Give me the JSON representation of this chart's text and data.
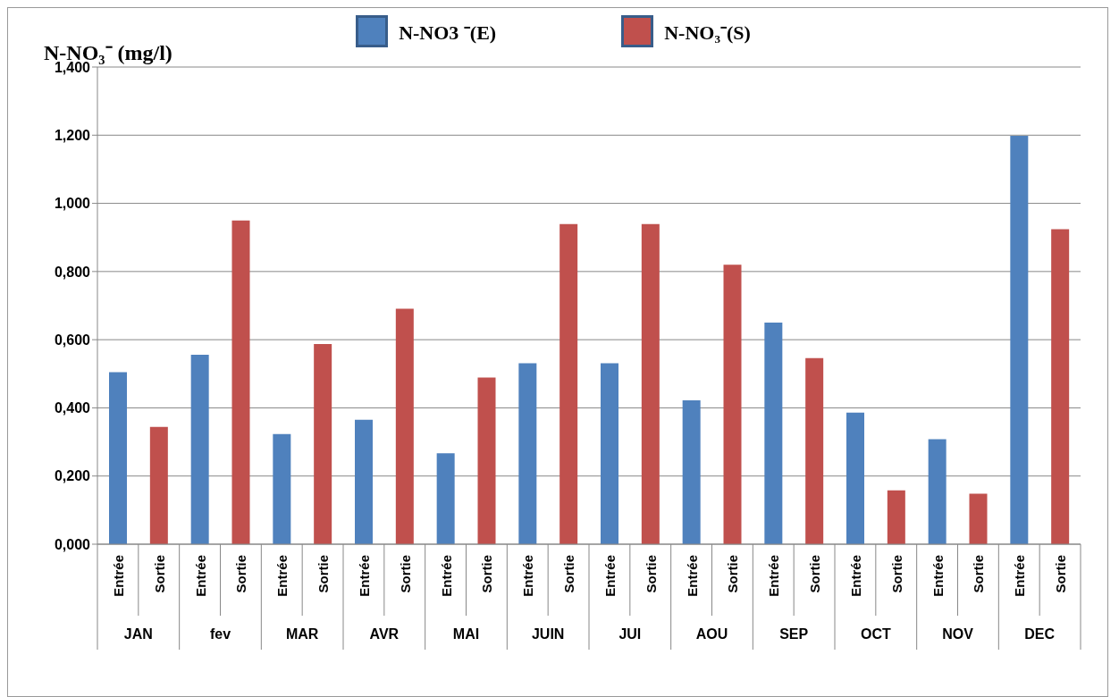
{
  "chart_data": {
    "type": "bar",
    "ylabel": "N-NO₃⁻ (mg/l)",
    "categories": [
      "JAN",
      "fev",
      "MAR",
      "AVR",
      "MAI",
      "JUIN",
      "JUI",
      "AOU",
      "SEP",
      "OCT",
      "NOV",
      "DEC"
    ],
    "series": [
      {
        "name": "N-NO3 ⁻(E)",
        "color": "#4f81bd",
        "values": [
          0.505,
          0.556,
          0.323,
          0.365,
          0.267,
          0.531,
          0.531,
          0.422,
          0.65,
          0.386,
          0.308,
          1.198
        ]
      },
      {
        "name": "N-NO₃⁻(S)",
        "color": "#c0504d",
        "values": [
          0.344,
          0.95,
          0.587,
          0.691,
          0.489,
          0.939,
          0.939,
          0.82,
          0.546,
          0.158,
          0.148,
          0.924
        ]
      }
    ],
    "annotations": [
      "Entrée",
      "Sortie",
      "Entrée",
      "Sortie",
      "Entrée",
      "Sortie",
      "Entrée",
      "Sortie",
      "Entrée",
      "Sortie",
      "Entrée",
      "Sortie",
      "Entrée",
      "Sortie",
      "Entrée",
      "Sortie",
      "Entrée",
      "Sortie",
      "Entrée",
      "Sortie",
      "Entrée",
      "Sortie",
      "Entrée",
      "Sortie"
    ],
    "ylim": [
      0,
      1.4
    ],
    "yticks": [
      {
        "value": 0,
        "label": "0,000"
      },
      {
        "value": 0.2,
        "label": "0,200"
      },
      {
        "value": 0.4,
        "label": "0,400"
      },
      {
        "value": 0.6,
        "label": "0,600"
      },
      {
        "value": 0.8,
        "label": "0,800"
      },
      {
        "value": 1.0,
        "label": "1,000"
      },
      {
        "value": 1.2,
        "label": "1,200"
      },
      {
        "value": 1.4,
        "label": "1,400"
      }
    ],
    "grid": "y",
    "legend": "top"
  }
}
